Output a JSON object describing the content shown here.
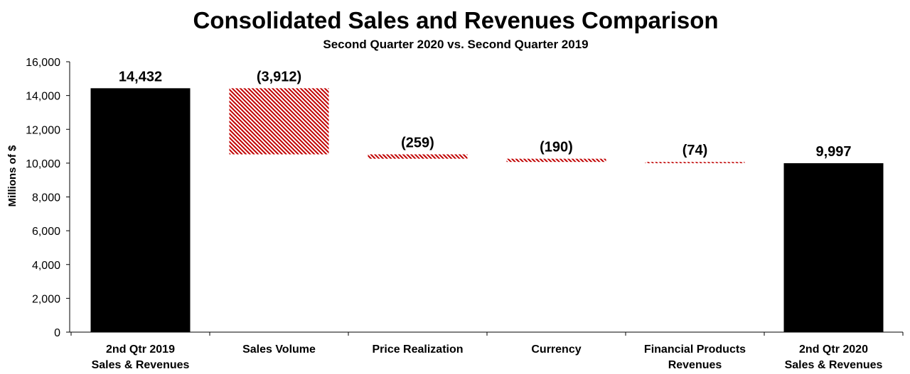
{
  "chart_data": {
    "type": "waterfall",
    "title": "Consolidated Sales and Revenues Comparison",
    "subtitle": "Second Quarter 2020 vs. Second Quarter 2019",
    "ylabel": "Millions of $",
    "xlabel": "",
    "ylim": [
      0,
      16000
    ],
    "yticks": [
      0,
      2000,
      4000,
      6000,
      8000,
      10000,
      12000,
      14000,
      16000
    ],
    "ytick_labels": [
      "0",
      "2,000",
      "4,000",
      "6,000",
      "8,000",
      "10,000",
      "12,000",
      "14,000",
      "16,000"
    ],
    "grid": false,
    "categories": [
      [
        "2nd Qtr 2019",
        "Sales & Revenues"
      ],
      [
        "Sales Volume"
      ],
      [
        "Price Realization"
      ],
      [
        "Currency"
      ],
      [
        "Financial Products",
        "Revenues"
      ],
      [
        "2nd Qtr 2020",
        "Sales & Revenues"
      ]
    ],
    "values": [
      14432,
      -3912,
      -259,
      -190,
      -74,
      9997
    ],
    "kinds": [
      "total",
      "delta",
      "delta",
      "delta",
      "delta",
      "total"
    ],
    "data_labels": [
      "14,432",
      "(3,912)",
      "(259)",
      "(190)",
      "(74)",
      "9,997"
    ],
    "colors": {
      "total": "#000000",
      "decrease": "#c00000"
    }
  }
}
